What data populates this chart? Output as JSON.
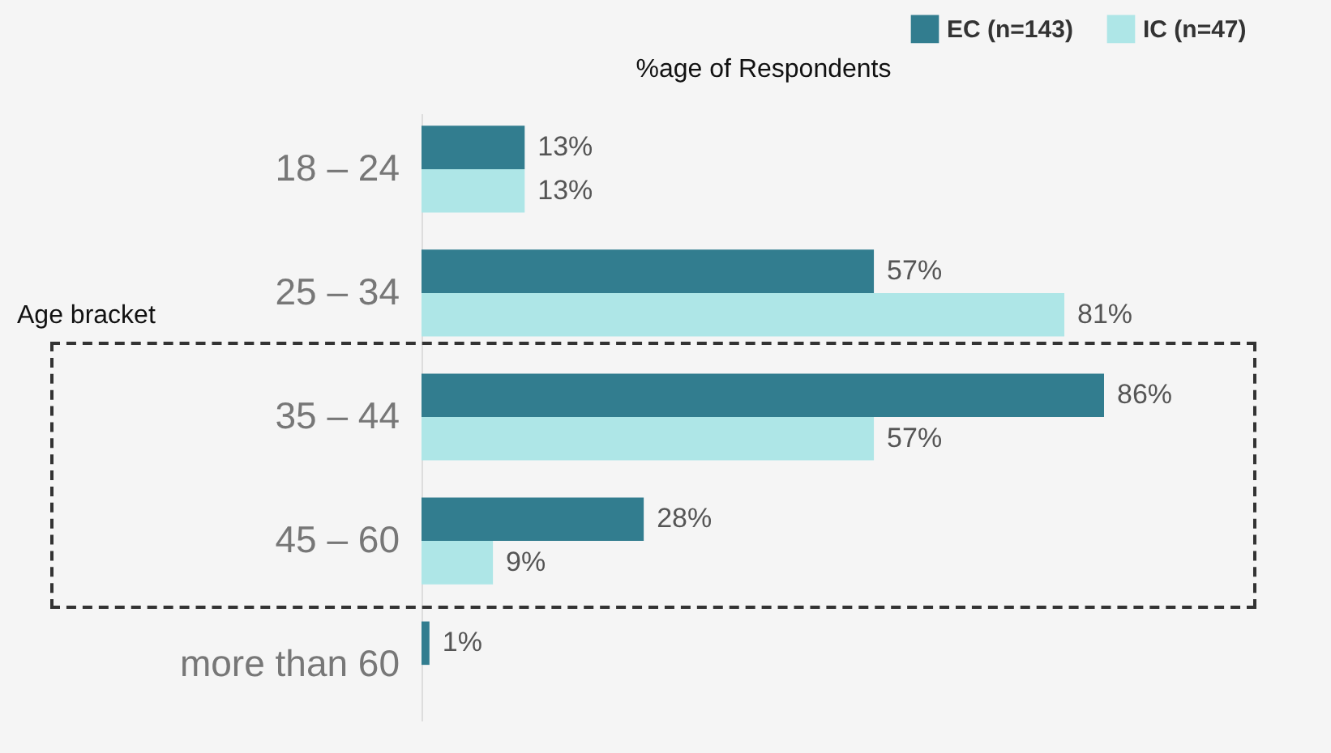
{
  "chart_data": {
    "type": "bar",
    "orientation": "horizontal",
    "xlabel": "%age of Respondents",
    "ylabel": "Age bracket",
    "categories": [
      "18 – 24",
      "25 – 34",
      "35 – 44",
      "45 – 60",
      "more than 60"
    ],
    "series": [
      {
        "name": "EC (n=143)",
        "color": "#327d8f",
        "values": [
          13,
          57,
          86,
          28,
          1
        ],
        "value_labels": [
          "13%",
          "57%",
          "86%",
          "28%",
          "1%"
        ]
      },
      {
        "name": "IC (n=47)",
        "color": "#aee6e7",
        "values": [
          13,
          81,
          57,
          9,
          null
        ],
        "value_labels": [
          "13%",
          "81%",
          "57%",
          "9%",
          null
        ]
      }
    ],
    "legend": "top right",
    "grid": false
  }
}
